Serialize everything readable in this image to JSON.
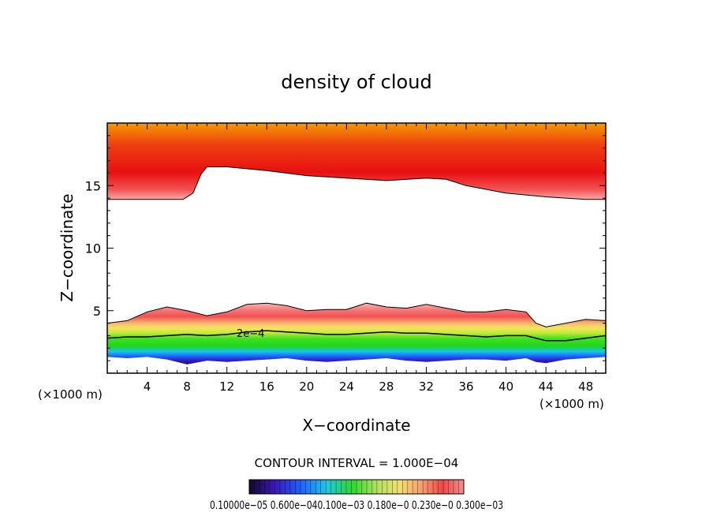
{
  "chart_data": {
    "type": "heatmap",
    "title": "density of cloud",
    "xlabel": "X−coordinate",
    "ylabel": "Z−coordinate",
    "x_unit_left": "(×1000 m)",
    "x_unit_right": "(×1000 m)",
    "xlim": [
      0,
      50
    ],
    "ylim": [
      0,
      20
    ],
    "x_ticks": [
      4,
      8,
      12,
      16,
      20,
      24,
      28,
      32,
      36,
      40,
      44,
      48
    ],
    "y_ticks": [
      5,
      10,
      15
    ],
    "contour_interval_label": "CONTOUR INTERVAL = 1.000E−04",
    "contour_line_label": "2e−4",
    "colorbar_tick_text": "0.10000e−05 0.600e−040.100e−03 0.180e−0 0.230e−0 0.300e−03",
    "upper_cloud_layer": {
      "x": [
        0,
        7.6,
        8.6,
        9.4,
        10,
        12,
        16,
        20,
        24,
        28,
        32,
        34,
        36,
        40,
        44,
        48,
        50
      ],
      "base_z": [
        13.9,
        13.9,
        14.4,
        15.9,
        16.5,
        16.5,
        16.2,
        15.8,
        15.6,
        15.4,
        15.6,
        15.5,
        15.0,
        14.4,
        14.1,
        13.9,
        13.9
      ],
      "top_z": 20
    },
    "lower_cloud_layer": {
      "x": [
        0,
        2,
        4,
        6,
        8,
        10,
        12,
        14,
        16,
        18,
        20,
        22,
        24,
        26,
        28,
        30,
        32,
        34,
        36,
        38,
        40,
        42,
        43,
        44,
        46,
        48,
        50
      ],
      "top_z": [
        4.0,
        4.2,
        4.9,
        5.3,
        5.0,
        4.6,
        4.9,
        5.5,
        5.6,
        5.4,
        5.0,
        5.1,
        5.1,
        5.6,
        5.3,
        5.2,
        5.5,
        5.2,
        4.9,
        4.9,
        5.1,
        4.9,
        4.0,
        3.7,
        4.0,
        4.3,
        4.2
      ],
      "contour_2e4_z": [
        2.8,
        2.9,
        2.9,
        3.0,
        3.1,
        3.0,
        3.1,
        3.3,
        3.4,
        3.3,
        3.2,
        3.1,
        3.1,
        3.2,
        3.3,
        3.2,
        3.2,
        3.1,
        3.0,
        2.9,
        3.0,
        3.0,
        2.8,
        2.6,
        2.6,
        2.8,
        3.0
      ],
      "base_z": [
        1.3,
        1.2,
        1.3,
        1.1,
        0.7,
        1.0,
        0.9,
        1.0,
        1.1,
        1.2,
        1.0,
        0.9,
        1.0,
        1.1,
        1.2,
        1.0,
        0.9,
        1.0,
        1.1,
        1.1,
        1.0,
        1.2,
        0.9,
        0.8,
        1.1,
        1.2,
        1.3
      ]
    },
    "colormap": [
      "#1a0a3a",
      "#2a1aa0",
      "#1e60ff",
      "#18c8e8",
      "#2ed82e",
      "#b8e050",
      "#f0e070",
      "#f6a060",
      "#f05050",
      "#e81818",
      "#f0a000"
    ]
  }
}
